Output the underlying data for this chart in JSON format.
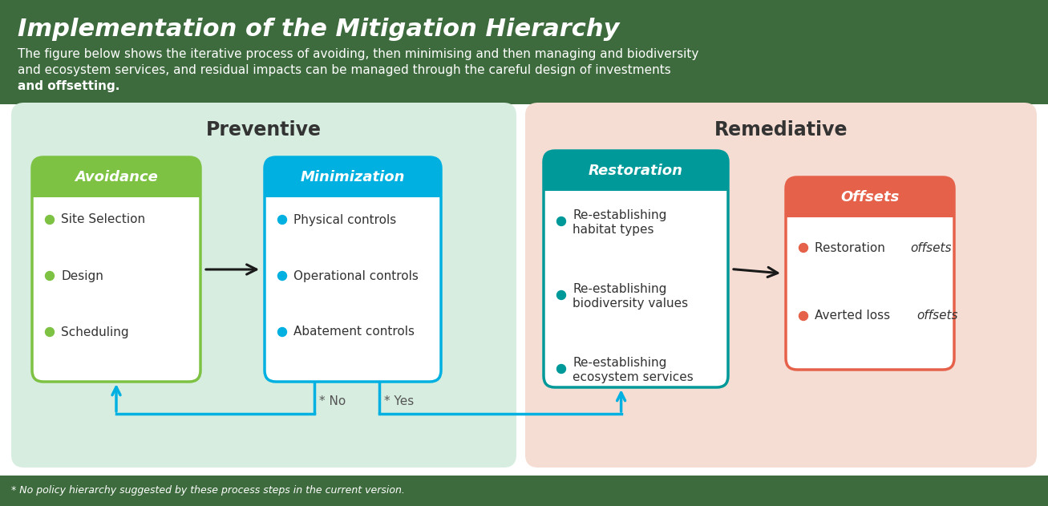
{
  "title": "Implementation of the Mitigation Hierarchy",
  "subtitle_line1": "The figure below shows the iterative process of avoiding, then minimising and then managing and biodiversity",
  "subtitle_line2": "and ecosystem services, and residual impacts can be managed through the careful design of investments",
  "subtitle_line3": "and offsetting.",
  "header_bg_color": "#3d6b3d",
  "footer_bg_color": "#3d6b3d",
  "main_bg_color": "#ffffff",
  "title_color": "#ffffff",
  "subtitle_color": "#ffffff",
  "footer_text_color": "#ffffff",
  "footer_text": "* No policy hierarchy suggested by these process steps in the current version.",
  "preventive_bg": "#d6ede0",
  "remediative_bg": "#f5ddd3",
  "avoidance_header_color": "#7dc242",
  "minimization_header_color": "#00b0e0",
  "restoration_header_color": "#009999",
  "offsets_header_color": "#e5614a",
  "box_bg": "#ffffff",
  "avoidance_bullet_color": "#7dc242",
  "minimization_bullet_color": "#00b0e0",
  "restoration_bullet_color": "#009999",
  "offsets_bullet_color": "#e5614a",
  "arrow_color": "#1a1a1a",
  "feedback_arrow_color": "#00b0e0",
  "preventive_label": "Preventive",
  "remediative_label": "Remediative",
  "section_label_color": "#333333",
  "avoidance_title": "Avoidance",
  "minimization_title": "Minimization",
  "restoration_title": "Restoration",
  "offsets_title": "Offsets",
  "avoidance_items": [
    "Site Selection",
    "Design",
    "Scheduling"
  ],
  "minimization_items": [
    "Physical controls",
    "Operational controls",
    "Abatement controls"
  ],
  "restoration_items_line1": [
    "Re-establishing",
    "Re-establishing",
    "Re-establishing"
  ],
  "restoration_items_line2": [
    "habitat types",
    "biodiversity values",
    "ecosystem services"
  ],
  "offsets_item1_normal": "Restoration ",
  "offsets_item1_italic": "offsets",
  "offsets_item2_normal": "Averted loss ",
  "offsets_item2_italic": "offsets",
  "no_label": "* No",
  "yes_label": "* Yes"
}
